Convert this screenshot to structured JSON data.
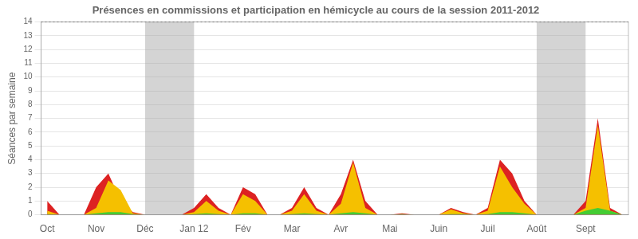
{
  "chart_data": {
    "type": "area",
    "title": "Présences en commissions et participation en hémicycle au cours de la session 2011-2012",
    "ylabel": "Séances par semaine",
    "x": [
      0,
      1,
      2,
      3,
      4,
      5,
      6,
      7,
      8,
      9,
      10,
      11,
      12,
      13,
      14,
      15,
      16,
      17,
      18,
      19,
      20,
      21,
      22,
      23,
      24,
      25,
      26,
      27,
      28,
      29,
      30,
      31,
      32,
      33,
      34,
      35,
      36,
      37,
      38,
      39,
      40,
      41,
      42,
      43,
      44,
      45,
      46,
      47
    ],
    "series": [
      {
        "color": "#dd2222",
        "values": [
          1.0,
          0,
          0,
          0,
          2.0,
          3.0,
          1.0,
          0.2,
          0,
          0,
          0,
          0,
          0.5,
          1.5,
          0.5,
          0,
          2.0,
          1.5,
          0,
          0,
          0.5,
          2.0,
          0.5,
          0,
          1.5,
          4.0,
          1.0,
          0,
          0,
          0.1,
          0,
          0,
          0,
          0.5,
          0.2,
          0,
          0.5,
          4.0,
          3.0,
          1.0,
          0,
          0,
          0,
          0,
          1.0,
          7.0,
          0.5,
          0
        ]
      },
      {
        "color": "#f5c000",
        "values": [
          0.3,
          0,
          0,
          0,
          0.5,
          2.5,
          1.8,
          0.1,
          0,
          0,
          0,
          0,
          0.2,
          1.0,
          0.3,
          0,
          1.5,
          1.0,
          0,
          0,
          0.3,
          1.5,
          0.3,
          0,
          0.8,
          3.8,
          0.5,
          0,
          0,
          0.05,
          0,
          0,
          0,
          0.4,
          0.1,
          0,
          0.3,
          3.5,
          2.0,
          0.8,
          0,
          0,
          0,
          0,
          0.5,
          6.5,
          0.3,
          0
        ]
      },
      {
        "color": "#44cc33",
        "values": [
          0.05,
          0,
          0,
          0,
          0.1,
          0.2,
          0.2,
          0.05,
          0,
          0,
          0,
          0,
          0.05,
          0.1,
          0.05,
          0,
          0.1,
          0.1,
          0,
          0,
          0.05,
          0.1,
          0.05,
          0,
          0.1,
          0.2,
          0.1,
          0,
          0,
          0.05,
          0,
          0,
          0,
          0.05,
          0.05,
          0,
          0.05,
          0.2,
          0.2,
          0.1,
          0,
          0,
          0,
          0,
          0.3,
          0.5,
          0.3,
          0
        ]
      }
    ],
    "xlim": [
      -0.5,
      47.5
    ],
    "xticks": [
      {
        "value": 0,
        "label": "Oct"
      },
      {
        "value": 4,
        "label": "Nov"
      },
      {
        "value": 8,
        "label": "Déc"
      },
      {
        "value": 12,
        "label": "Jan 12"
      },
      {
        "value": 16,
        "label": "Fév"
      },
      {
        "value": 20,
        "label": "Mar"
      },
      {
        "value": 24,
        "label": "Avr"
      },
      {
        "value": 28,
        "label": "Mai"
      },
      {
        "value": 32,
        "label": "Juin"
      },
      {
        "value": 36,
        "label": "Juil"
      },
      {
        "value": 40,
        "label": "Août"
      },
      {
        "value": 44,
        "label": "Sept"
      }
    ],
    "ylim": [
      0,
      14
    ],
    "yticks": [
      0,
      1,
      2,
      3,
      4,
      5,
      6,
      7,
      8,
      9,
      10,
      11,
      12,
      13,
      14
    ],
    "bands": [
      [
        8,
        12
      ],
      [
        40,
        44
      ]
    ],
    "hlines": [
      14
    ],
    "grid": true
  }
}
